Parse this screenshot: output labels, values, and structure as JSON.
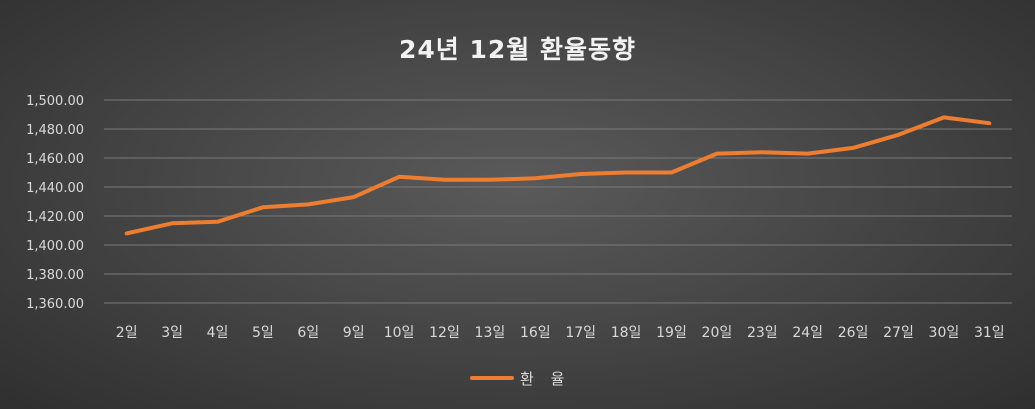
{
  "colors": {
    "line": "#ed7d31",
    "grid": "#7a7a7a",
    "text": "#d9d9d9"
  },
  "chart_data": {
    "type": "line",
    "title": "24년 12월 환율동향",
    "xlabel": "",
    "ylabel": "",
    "ylim": [
      1360,
      1500
    ],
    "yticks": [
      "1,360.00",
      "1,380.00",
      "1,400.00",
      "1,420.00",
      "1,440.00",
      "1,460.00",
      "1,480.00",
      "1,500.00"
    ],
    "grid": true,
    "legend_position": "bottom",
    "categories": [
      "2일",
      "3일",
      "4일",
      "5일",
      "6일",
      "9일",
      "10일",
      "12일",
      "13일",
      "16일",
      "17일",
      "18일",
      "19일",
      "20일",
      "23일",
      "24일",
      "26일",
      "27일",
      "30일",
      "31일"
    ],
    "series": [
      {
        "name": "환 율",
        "values": [
          1408,
          1415,
          1416,
          1426,
          1428,
          1433,
          1447,
          1445,
          1445,
          1446,
          1449,
          1450,
          1450,
          1463,
          1464,
          1463,
          1467,
          1476,
          1488,
          1484
        ]
      }
    ]
  }
}
